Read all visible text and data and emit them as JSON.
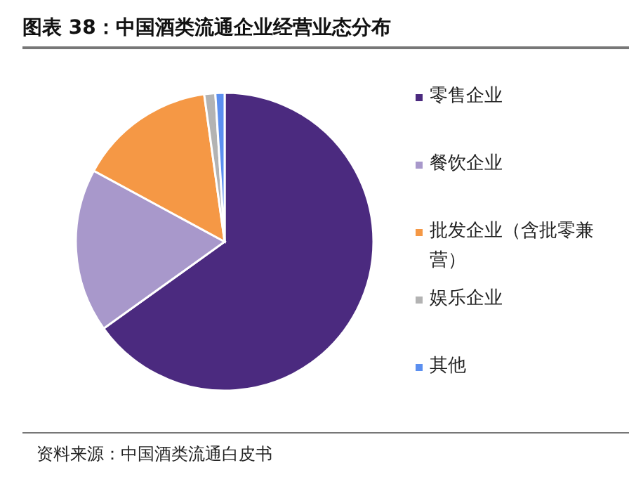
{
  "chart_data": {
    "type": "pie",
    "title": "图表 38：中国酒类流通企业经营业态分布",
    "categories": [
      "零售企业",
      "餐饮企业",
      "批发企业（含批零兼营）",
      "娱乐企业",
      "其他"
    ],
    "values": [
      65.1,
      17.8,
      14.9,
      1.2,
      1.0
    ],
    "colors": [
      "#4b2a7f",
      "#a898cb",
      "#f59845",
      "#b3b3b3",
      "#5b8ff0"
    ],
    "legend": "right",
    "annotations": [
      "资料来源：中国酒类流通白皮书"
    ]
  }
}
